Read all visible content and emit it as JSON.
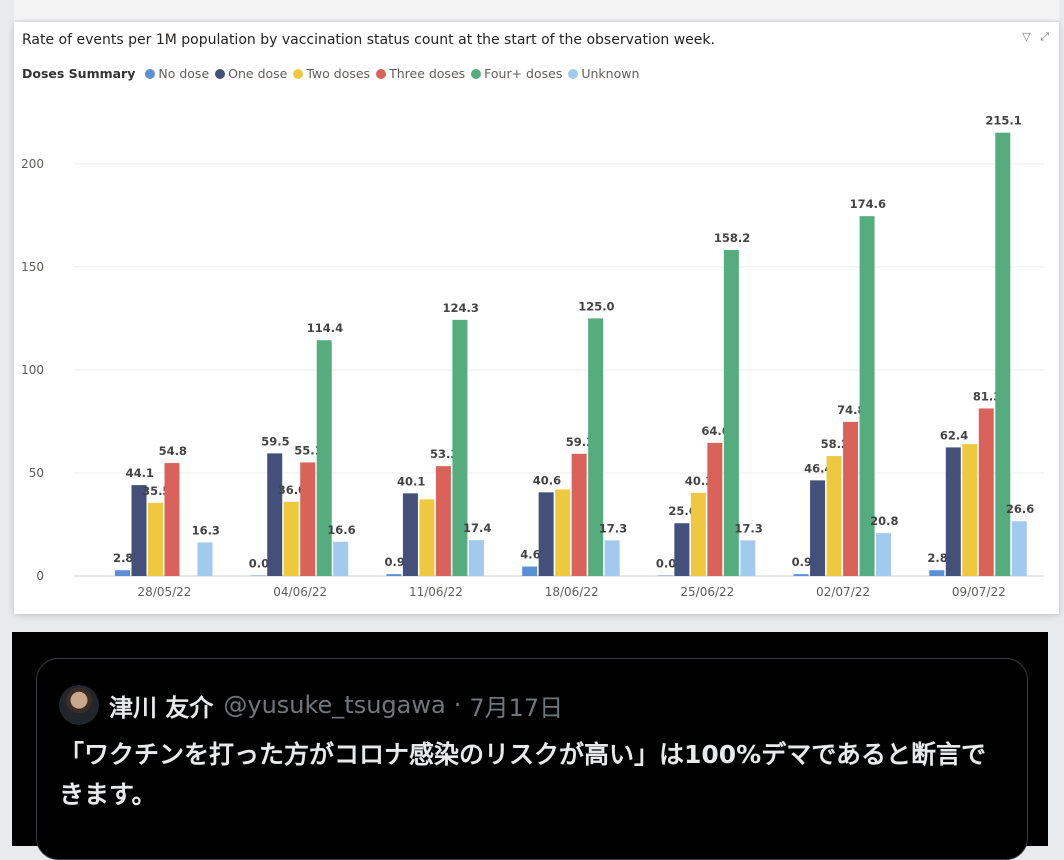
{
  "chart_data": {
    "type": "bar",
    "title": "Rate of events per 1M population by vaccination status count at the start of the observation week.",
    "legend_title": "Doses Summary",
    "categories": [
      "28/05/22",
      "04/06/22",
      "11/06/22",
      "18/06/22",
      "25/06/22",
      "02/07/22",
      "09/07/22"
    ],
    "ylim": [
      0,
      230
    ],
    "yticks": [
      0,
      50,
      100,
      150,
      200
    ],
    "series": [
      {
        "name": "No dose",
        "color": "#5b8fd6",
        "values": [
          2.8,
          0.0,
          0.9,
          4.6,
          0.0,
          0.9,
          2.8
        ],
        "labels": [
          "2.8",
          "0.0",
          "0.9",
          "4.6",
          "0.0",
          "0.9",
          "2.8"
        ]
      },
      {
        "name": "One dose",
        "color": "#42507a",
        "values": [
          44.1,
          59.5,
          40.1,
          40.6,
          25.6,
          46.4,
          62.4
        ],
        "labels": [
          "44.1",
          "59.5",
          "40.1",
          "40.6",
          "25.6",
          "46.4",
          "62.4"
        ]
      },
      {
        "name": "Two doses",
        "color": "#eec93f",
        "values": [
          35.5,
          36.0,
          37.2,
          42.0,
          40.3,
          58.2,
          64.0
        ],
        "labels": [
          "35.5",
          "36.0",
          "",
          "",
          "40.3",
          "58.2",
          ""
        ]
      },
      {
        "name": "Three doses",
        "color": "#d9625b",
        "values": [
          54.8,
          55.1,
          53.3,
          59.3,
          64.6,
          74.8,
          81.3
        ],
        "labels": [
          "54.8",
          "55.1",
          "53.3",
          "59.3",
          "64.6",
          "74.8",
          "81.3"
        ]
      },
      {
        "name": "Four+ doses",
        "color": "#55ac7e",
        "values": [
          null,
          114.4,
          124.3,
          125.0,
          158.2,
          174.6,
          215.1
        ],
        "labels": [
          "",
          "114.4",
          "124.3",
          "125.0",
          "158.2",
          "174.6",
          "215.1"
        ]
      },
      {
        "name": "Unknown",
        "color": "#a2c9ee",
        "values": [
          16.3,
          16.6,
          17.4,
          17.3,
          17.3,
          20.8,
          26.6
        ],
        "labels": [
          "16.3",
          "16.6",
          "17.4",
          "17.3",
          "17.3",
          "20.8",
          "26.6"
        ]
      }
    ]
  },
  "chart_icons": {
    "filter": "▽",
    "expand": "⤢"
  },
  "tweet": {
    "name": "津川 友介",
    "handle": "@yusuke_tsugawa",
    "separator": "·",
    "date": "7月17日",
    "text": "「ワクチンを打った方がコロナ感染のリスクが高い」は100%デマであると断言できます。"
  }
}
